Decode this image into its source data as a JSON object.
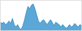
{
  "chart_data": {
    "type": "area",
    "series": [
      {
        "type": "area",
        "color": "#5ba8d8",
        "values": [
          22,
          20,
          22,
          18,
          20,
          24,
          20,
          28,
          18,
          14,
          18,
          12,
          10,
          16,
          26,
          38,
          48,
          44,
          50,
          52,
          44,
          34,
          24,
          20,
          24,
          26,
          22,
          18,
          22,
          26,
          22,
          16,
          22,
          20,
          18,
          14,
          18,
          15,
          12,
          14,
          18,
          14,
          16,
          20,
          17,
          14,
          18,
          16
        ]
      },
      {
        "type": "line",
        "color": "#3d8fc0",
        "values": [
          22,
          20,
          22,
          18,
          20,
          24,
          20,
          28,
          18,
          14,
          18,
          12,
          10,
          16,
          26,
          38,
          48,
          44,
          50,
          52,
          44,
          34,
          24,
          20,
          24,
          26,
          22,
          18,
          22,
          26,
          22,
          16,
          22,
          20,
          18,
          14,
          18,
          15,
          12,
          14,
          18,
          14,
          16,
          20,
          17,
          14,
          18,
          16
        ]
      }
    ],
    "xlim": [
      0,
      47
    ],
    "ylim": [
      8,
      58
    ],
    "tick_labels": false
  }
}
